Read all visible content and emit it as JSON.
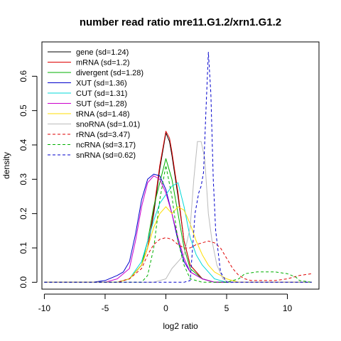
{
  "chart_data": {
    "type": "line",
    "title": "number read ratio mre11.G1.2/xrn1.G1.2",
    "xlabel": "log2 ratio",
    "ylabel": "density",
    "xlim": [
      -10.2,
      12.6
    ],
    "ylim": [
      -0.02,
      0.7
    ],
    "xticks": [
      -10,
      -5,
      0,
      5,
      10
    ],
    "yticks": [
      0.0,
      0.1,
      0.2,
      0.3,
      0.4,
      0.5,
      0.6
    ],
    "grid": false,
    "legend_position": "top-left",
    "series": [
      {
        "name": "gene (sd=1.24)",
        "color": "#000000",
        "dash": "solid",
        "points": [
          [
            -10,
            0
          ],
          [
            -4,
            0
          ],
          [
            -3,
            0.01
          ],
          [
            -2,
            0.05
          ],
          [
            -1.5,
            0.1
          ],
          [
            -1,
            0.2
          ],
          [
            -0.5,
            0.33
          ],
          [
            0,
            0.435
          ],
          [
            0.3,
            0.41
          ],
          [
            0.5,
            0.37
          ],
          [
            1,
            0.25
          ],
          [
            1.5,
            0.12
          ],
          [
            2,
            0.05
          ],
          [
            3,
            0.01
          ],
          [
            4,
            0
          ],
          [
            12,
            0
          ]
        ]
      },
      {
        "name": "mRNA (sd=1.2)",
        "color": "#df0000",
        "dash": "solid",
        "points": [
          [
            -10,
            0
          ],
          [
            -4,
            0
          ],
          [
            -3,
            0.01
          ],
          [
            -2,
            0.05
          ],
          [
            -1.5,
            0.1
          ],
          [
            -1,
            0.21
          ],
          [
            -0.5,
            0.34
          ],
          [
            0,
            0.44
          ],
          [
            0.3,
            0.42
          ],
          [
            0.5,
            0.38
          ],
          [
            1,
            0.26
          ],
          [
            1.5,
            0.12
          ],
          [
            2,
            0.05
          ],
          [
            3,
            0.01
          ],
          [
            4,
            0
          ],
          [
            12,
            0
          ]
        ]
      },
      {
        "name": "divergent (sd=1.28)",
        "color": "#00b000",
        "dash": "solid",
        "points": [
          [
            -10,
            0
          ],
          [
            -4,
            0
          ],
          [
            -3,
            0.01
          ],
          [
            -2,
            0.05
          ],
          [
            -1.5,
            0.12
          ],
          [
            -1,
            0.22
          ],
          [
            -0.5,
            0.29
          ],
          [
            0,
            0.36
          ],
          [
            0.5,
            0.3
          ],
          [
            1,
            0.2
          ],
          [
            1.5,
            0.1
          ],
          [
            2,
            0.04
          ],
          [
            3,
            0.01
          ],
          [
            4,
            0
          ],
          [
            12,
            0
          ]
        ]
      },
      {
        "name": "XUT (sd=1.36)",
        "color": "#0000cc",
        "dash": "solid",
        "points": [
          [
            -10,
            0
          ],
          [
            -6,
            0
          ],
          [
            -5,
            0.005
          ],
          [
            -4,
            0.02
          ],
          [
            -3.5,
            0.03
          ],
          [
            -3,
            0.06
          ],
          [
            -2.5,
            0.14
          ],
          [
            -2,
            0.24
          ],
          [
            -1.5,
            0.3
          ],
          [
            -1,
            0.315
          ],
          [
            -0.5,
            0.31
          ],
          [
            0,
            0.27
          ],
          [
            0.5,
            0.2
          ],
          [
            1,
            0.12
          ],
          [
            1.5,
            0.06
          ],
          [
            2,
            0.03
          ],
          [
            3,
            0.01
          ],
          [
            4,
            0
          ],
          [
            12,
            0
          ]
        ]
      },
      {
        "name": "CUT (sd=1.31)",
        "color": "#00d8d8",
        "dash": "solid",
        "points": [
          [
            -10,
            0
          ],
          [
            -4,
            0
          ],
          [
            -3,
            0.01
          ],
          [
            -2,
            0.06
          ],
          [
            -1.5,
            0.12
          ],
          [
            -1,
            0.18
          ],
          [
            -0.5,
            0.23
          ],
          [
            0,
            0.255
          ],
          [
            0.5,
            0.28
          ],
          [
            1,
            0.29
          ],
          [
            1.5,
            0.22
          ],
          [
            2,
            0.13
          ],
          [
            2.5,
            0.08
          ],
          [
            3,
            0.05
          ],
          [
            3.5,
            0.03
          ],
          [
            4,
            0.01
          ],
          [
            5,
            0
          ],
          [
            12,
            0
          ]
        ]
      },
      {
        "name": "SUT (sd=1.28)",
        "color": "#cc00cc",
        "dash": "solid",
        "points": [
          [
            -10,
            0
          ],
          [
            -5,
            0
          ],
          [
            -4,
            0.01
          ],
          [
            -3,
            0.04
          ],
          [
            -2.5,
            0.12
          ],
          [
            -2,
            0.22
          ],
          [
            -1.5,
            0.29
          ],
          [
            -1,
            0.31
          ],
          [
            -0.5,
            0.3
          ],
          [
            0,
            0.26
          ],
          [
            0.5,
            0.2
          ],
          [
            1,
            0.13
          ],
          [
            1.5,
            0.07
          ],
          [
            2,
            0.03
          ],
          [
            3,
            0.01
          ],
          [
            4,
            0
          ],
          [
            12,
            0
          ]
        ]
      },
      {
        "name": "tRNA (sd=1.48)",
        "color": "#ffdd00",
        "dash": "solid",
        "points": [
          [
            -10,
            0
          ],
          [
            -4,
            0
          ],
          [
            -3,
            0.01
          ],
          [
            -2,
            0.05
          ],
          [
            -1.5,
            0.1
          ],
          [
            -1,
            0.16
          ],
          [
            -0.5,
            0.2
          ],
          [
            0,
            0.22
          ],
          [
            0.5,
            0.2
          ],
          [
            1,
            0.22
          ],
          [
            1.5,
            0.21
          ],
          [
            2,
            0.17
          ],
          [
            2.5,
            0.12
          ],
          [
            3,
            0.08
          ],
          [
            3.5,
            0.05
          ],
          [
            4,
            0.03
          ],
          [
            5,
            0.01
          ],
          [
            6,
            0
          ],
          [
            12,
            0
          ]
        ]
      },
      {
        "name": "snoRNA (sd=1.01)",
        "color": "#bbbbbb",
        "dash": "solid",
        "points": [
          [
            -10,
            0
          ],
          [
            -1,
            0
          ],
          [
            0,
            0.01
          ],
          [
            0.5,
            0.04
          ],
          [
            1,
            0.06
          ],
          [
            1.5,
            0.08
          ],
          [
            2,
            0.16
          ],
          [
            2.3,
            0.3
          ],
          [
            2.6,
            0.41
          ],
          [
            2.9,
            0.41
          ],
          [
            3.2,
            0.36
          ],
          [
            3.5,
            0.2
          ],
          [
            3.8,
            0.12
          ],
          [
            4.2,
            0.05
          ],
          [
            4.7,
            0.01
          ],
          [
            5.2,
            0
          ],
          [
            12,
            0
          ]
        ]
      },
      {
        "name": "rRNA (sd=3.47)",
        "color": "#df0000",
        "dash": "dashed",
        "points": [
          [
            -10,
            0
          ],
          [
            -4,
            0
          ],
          [
            -3,
            0.01
          ],
          [
            -2,
            0.04
          ],
          [
            -1.5,
            0.08
          ],
          [
            -1,
            0.11
          ],
          [
            -0.5,
            0.125
          ],
          [
            0,
            0.13
          ],
          [
            0.5,
            0.125
          ],
          [
            1,
            0.11
          ],
          [
            1.5,
            0.1
          ],
          [
            2,
            0.1
          ],
          [
            2.5,
            0.11
          ],
          [
            3,
            0.115
          ],
          [
            3.5,
            0.12
          ],
          [
            4,
            0.115
          ],
          [
            4.5,
            0.1
          ],
          [
            5,
            0.07
          ],
          [
            5.5,
            0.04
          ],
          [
            6,
            0.02
          ],
          [
            6.5,
            0.01
          ],
          [
            7,
            0.005
          ],
          [
            8,
            0.005
          ],
          [
            9,
            0.005
          ],
          [
            10,
            0.01
          ],
          [
            11,
            0.02
          ],
          [
            12,
            0.025
          ]
        ]
      },
      {
        "name": "ncRNA (sd=3.17)",
        "color": "#00b000",
        "dash": "dashed",
        "points": [
          [
            -10,
            0
          ],
          [
            -2,
            0
          ],
          [
            -1.5,
            0.02
          ],
          [
            -1,
            0.1
          ],
          [
            -0.5,
            0.24
          ],
          [
            0,
            0.34
          ],
          [
            0.5,
            0.25
          ],
          [
            1,
            0.12
          ],
          [
            1.5,
            0.05
          ],
          [
            2,
            0.01
          ],
          [
            3,
            0
          ],
          [
            5,
            0
          ],
          [
            6,
            0.01
          ],
          [
            6.5,
            0.025
          ],
          [
            7.5,
            0.03
          ],
          [
            9,
            0.03
          ],
          [
            10,
            0.025
          ],
          [
            10.7,
            0.015
          ],
          [
            11,
            0.005
          ],
          [
            12,
            0
          ]
        ]
      },
      {
        "name": "snRNA (sd=0.62)",
        "color": "#0000cc",
        "dash": "dashed",
        "points": [
          [
            -10,
            0
          ],
          [
            1.5,
            0
          ],
          [
            2,
            0.005
          ],
          [
            2.2,
            0.1
          ],
          [
            2.4,
            0.2
          ],
          [
            2.7,
            0.26
          ],
          [
            2.9,
            0.28
          ],
          [
            3.1,
            0.32
          ],
          [
            3.3,
            0.5
          ],
          [
            3.5,
            0.67
          ],
          [
            3.7,
            0.55
          ],
          [
            3.9,
            0.3
          ],
          [
            4.1,
            0.15
          ],
          [
            4.5,
            0.03
          ],
          [
            5,
            0
          ],
          [
            12,
            0
          ]
        ]
      }
    ]
  }
}
